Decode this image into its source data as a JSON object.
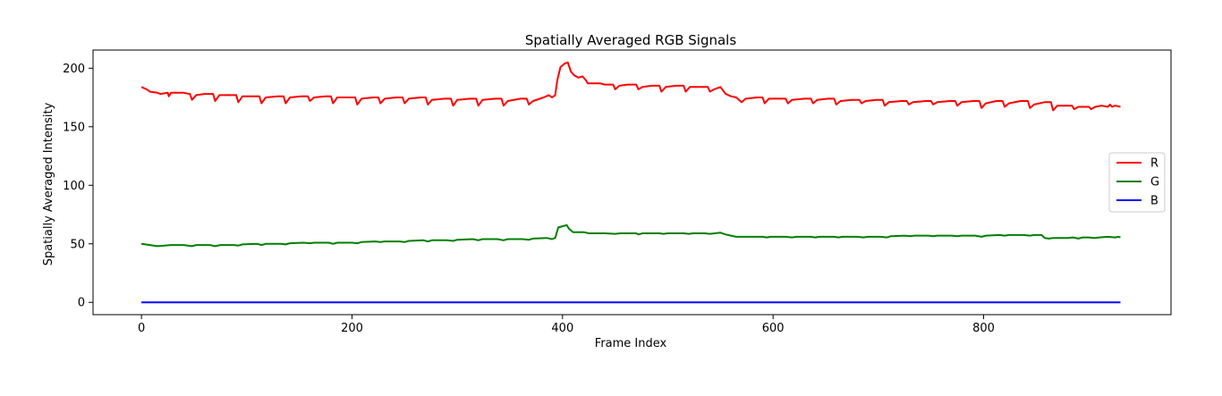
{
  "chart_data": {
    "type": "line",
    "title": "Spatially Averaged RGB Signals",
    "xlabel": "Frame Index",
    "ylabel": "Spatially Averaged Intensity",
    "xlim": [
      -46,
      978
    ],
    "ylim": [
      -10.5,
      215.5
    ],
    "xticks": [
      0,
      200,
      400,
      600,
      800
    ],
    "yticks": [
      0,
      50,
      100,
      150,
      200
    ],
    "grid": false,
    "legend_position": "center-right",
    "legend": [
      "R",
      "G",
      "B"
    ],
    "series": [
      {
        "name": "R",
        "color": "#ff0000",
        "points": [
          [
            0,
            184
          ],
          [
            5,
            182
          ],
          [
            8,
            180
          ],
          [
            15,
            179
          ],
          [
            18,
            178
          ],
          [
            25,
            179
          ],
          [
            26,
            176
          ],
          [
            28,
            179
          ],
          [
            40,
            179
          ],
          [
            46,
            178
          ],
          [
            48,
            173
          ],
          [
            52,
            177
          ],
          [
            60,
            178
          ],
          [
            68,
            178
          ],
          [
            70,
            172
          ],
          [
            74,
            177
          ],
          [
            85,
            177
          ],
          [
            90,
            177
          ],
          [
            92,
            171
          ],
          [
            96,
            176
          ],
          [
            108,
            176
          ],
          [
            112,
            176
          ],
          [
            114,
            170
          ],
          [
            118,
            175
          ],
          [
            130,
            176
          ],
          [
            135,
            176
          ],
          [
            137,
            170
          ],
          [
            141,
            175
          ],
          [
            152,
            176
          ],
          [
            158,
            176
          ],
          [
            160,
            172
          ],
          [
            164,
            175
          ],
          [
            175,
            176
          ],
          [
            180,
            176
          ],
          [
            182,
            170
          ],
          [
            186,
            175
          ],
          [
            198,
            175
          ],
          [
            203,
            175
          ],
          [
            205,
            169
          ],
          [
            209,
            174
          ],
          [
            220,
            175
          ],
          [
            225,
            175
          ],
          [
            227,
            170
          ],
          [
            231,
            174
          ],
          [
            242,
            175
          ],
          [
            248,
            175
          ],
          [
            250,
            170
          ],
          [
            254,
            174
          ],
          [
            265,
            175
          ],
          [
            270,
            175
          ],
          [
            272,
            169
          ],
          [
            276,
            173
          ],
          [
            288,
            174
          ],
          [
            294,
            174
          ],
          [
            296,
            168
          ],
          [
            300,
            173
          ],
          [
            312,
            174
          ],
          [
            318,
            174
          ],
          [
            320,
            168
          ],
          [
            324,
            173
          ],
          [
            336,
            174
          ],
          [
            342,
            174
          ],
          [
            344,
            168
          ],
          [
            348,
            172
          ],
          [
            360,
            174
          ],
          [
            366,
            174
          ],
          [
            368,
            169
          ],
          [
            372,
            172
          ],
          [
            382,
            175
          ],
          [
            387,
            177
          ],
          [
            390,
            175
          ],
          [
            393,
            177
          ],
          [
            395,
            190
          ],
          [
            398,
            201
          ],
          [
            402,
            204
          ],
          [
            405,
            205
          ],
          [
            408,
            197
          ],
          [
            411,
            194
          ],
          [
            415,
            192
          ],
          [
            419,
            193
          ],
          [
            422,
            190
          ],
          [
            424,
            187
          ],
          [
            430,
            187
          ],
          [
            436,
            187
          ],
          [
            440,
            186
          ],
          [
            448,
            186
          ],
          [
            450,
            182
          ],
          [
            454,
            185
          ],
          [
            462,
            186
          ],
          [
            470,
            186
          ],
          [
            472,
            182
          ],
          [
            476,
            184
          ],
          [
            485,
            185
          ],
          [
            492,
            185
          ],
          [
            494,
            180
          ],
          [
            498,
            184
          ],
          [
            508,
            185
          ],
          [
            515,
            185
          ],
          [
            517,
            180
          ],
          [
            521,
            184
          ],
          [
            530,
            184
          ],
          [
            538,
            184
          ],
          [
            540,
            180
          ],
          [
            544,
            182
          ],
          [
            550,
            184
          ],
          [
            555,
            178
          ],
          [
            560,
            176
          ],
          [
            565,
            175
          ],
          [
            570,
            171
          ],
          [
            574,
            174
          ],
          [
            585,
            175
          ],
          [
            590,
            175
          ],
          [
            592,
            170
          ],
          [
            596,
            174
          ],
          [
            608,
            174
          ],
          [
            612,
            174
          ],
          [
            614,
            170
          ],
          [
            618,
            173
          ],
          [
            630,
            174
          ],
          [
            636,
            174
          ],
          [
            638,
            170
          ],
          [
            642,
            173
          ],
          [
            652,
            174
          ],
          [
            658,
            174
          ],
          [
            660,
            169
          ],
          [
            664,
            172
          ],
          [
            675,
            173
          ],
          [
            682,
            173
          ],
          [
            684,
            170
          ],
          [
            688,
            172
          ],
          [
            698,
            173
          ],
          [
            704,
            173
          ],
          [
            706,
            168
          ],
          [
            710,
            171
          ],
          [
            722,
            172
          ],
          [
            727,
            172
          ],
          [
            729,
            169
          ],
          [
            733,
            171
          ],
          [
            745,
            172
          ],
          [
            750,
            172
          ],
          [
            752,
            169
          ],
          [
            756,
            171
          ],
          [
            768,
            172
          ],
          [
            773,
            172
          ],
          [
            775,
            168
          ],
          [
            779,
            171
          ],
          [
            790,
            172
          ],
          [
            796,
            172
          ],
          [
            798,
            166
          ],
          [
            802,
            170
          ],
          [
            812,
            172
          ],
          [
            818,
            172
          ],
          [
            820,
            167
          ],
          [
            824,
            170
          ],
          [
            835,
            172
          ],
          [
            842,
            172
          ],
          [
            844,
            166
          ],
          [
            848,
            169
          ],
          [
            858,
            171
          ],
          [
            864,
            171
          ],
          [
            866,
            164
          ],
          [
            870,
            168
          ],
          [
            880,
            168
          ],
          [
            884,
            168
          ],
          [
            886,
            165
          ],
          [
            890,
            167
          ],
          [
            896,
            167
          ],
          [
            900,
            167
          ],
          [
            902,
            165
          ],
          [
            906,
            167
          ],
          [
            912,
            168
          ],
          [
            918,
            167
          ],
          [
            920,
            169
          ],
          [
            922,
            167
          ],
          [
            925,
            168
          ],
          [
            930,
            167
          ]
        ]
      },
      {
        "name": "G",
        "color": "#008000",
        "points": [
          [
            0,
            50
          ],
          [
            8,
            49
          ],
          [
            15,
            48
          ],
          [
            22,
            48.5
          ],
          [
            28,
            49
          ],
          [
            40,
            49
          ],
          [
            48,
            48
          ],
          [
            52,
            49
          ],
          [
            65,
            49
          ],
          [
            70,
            48
          ],
          [
            75,
            49
          ],
          [
            88,
            49
          ],
          [
            92,
            48.5
          ],
          [
            96,
            49.5
          ],
          [
            110,
            50
          ],
          [
            114,
            49
          ],
          [
            118,
            50
          ],
          [
            132,
            50
          ],
          [
            137,
            49.5
          ],
          [
            141,
            50.5
          ],
          [
            154,
            51
          ],
          [
            160,
            50.5
          ],
          [
            164,
            51
          ],
          [
            178,
            51
          ],
          [
            182,
            50
          ],
          [
            186,
            51
          ],
          [
            200,
            51
          ],
          [
            205,
            50.5
          ],
          [
            209,
            51.5
          ],
          [
            222,
            52
          ],
          [
            227,
            51.5
          ],
          [
            231,
            52
          ],
          [
            245,
            52
          ],
          [
            250,
            51.5
          ],
          [
            254,
            52.5
          ],
          [
            268,
            53
          ],
          [
            272,
            52
          ],
          [
            276,
            53
          ],
          [
            290,
            53
          ],
          [
            296,
            52.5
          ],
          [
            300,
            53.5
          ],
          [
            315,
            54
          ],
          [
            320,
            53
          ],
          [
            324,
            54
          ],
          [
            338,
            54
          ],
          [
            344,
            53
          ],
          [
            348,
            54
          ],
          [
            362,
            54
          ],
          [
            368,
            53.5
          ],
          [
            372,
            54.5
          ],
          [
            385,
            55
          ],
          [
            390,
            54
          ],
          [
            393,
            55
          ],
          [
            396,
            64
          ],
          [
            400,
            65
          ],
          [
            404,
            66
          ],
          [
            406,
            63
          ],
          [
            410,
            60
          ],
          [
            415,
            60
          ],
          [
            420,
            60
          ],
          [
            425,
            59
          ],
          [
            440,
            59
          ],
          [
            450,
            58.5
          ],
          [
            455,
            59
          ],
          [
            470,
            59
          ],
          [
            472,
            58
          ],
          [
            476,
            59
          ],
          [
            492,
            59
          ],
          [
            496,
            58.5
          ],
          [
            500,
            59
          ],
          [
            515,
            59
          ],
          [
            520,
            58.5
          ],
          [
            524,
            59
          ],
          [
            535,
            59
          ],
          [
            540,
            58.5
          ],
          [
            545,
            59
          ],
          [
            550,
            59.5
          ],
          [
            555,
            58
          ],
          [
            560,
            57
          ],
          [
            565,
            56
          ],
          [
            570,
            56
          ],
          [
            578,
            56
          ],
          [
            590,
            56
          ],
          [
            594,
            55.5
          ],
          [
            598,
            56
          ],
          [
            612,
            56
          ],
          [
            618,
            55.5
          ],
          [
            622,
            56
          ],
          [
            636,
            56
          ],
          [
            640,
            55.5
          ],
          [
            644,
            56
          ],
          [
            658,
            56
          ],
          [
            662,
            55.5
          ],
          [
            666,
            56
          ],
          [
            680,
            56
          ],
          [
            686,
            55.5
          ],
          [
            690,
            56
          ],
          [
            702,
            56
          ],
          [
            708,
            55.5
          ],
          [
            712,
            56.5
          ],
          [
            725,
            57
          ],
          [
            730,
            56.5
          ],
          [
            734,
            57
          ],
          [
            748,
            57
          ],
          [
            752,
            56.5
          ],
          [
            756,
            57
          ],
          [
            770,
            57
          ],
          [
            775,
            56.5
          ],
          [
            779,
            57
          ],
          [
            792,
            57
          ],
          [
            798,
            56
          ],
          [
            802,
            57
          ],
          [
            815,
            57.5
          ],
          [
            820,
            57
          ],
          [
            824,
            57.5
          ],
          [
            838,
            57.5
          ],
          [
            844,
            57
          ],
          [
            848,
            57.5
          ],
          [
            855,
            57.5
          ],
          [
            858,
            55
          ],
          [
            862,
            54.5
          ],
          [
            866,
            55
          ],
          [
            875,
            55
          ],
          [
            880,
            55
          ],
          [
            885,
            55.5
          ],
          [
            890,
            54.5
          ],
          [
            894,
            55.5
          ],
          [
            900,
            55.5
          ],
          [
            905,
            55
          ],
          [
            910,
            55.5
          ],
          [
            918,
            56
          ],
          [
            925,
            55.5
          ],
          [
            928,
            56
          ],
          [
            930,
            55.5
          ]
        ]
      },
      {
        "name": "B",
        "color": "#0000ff",
        "points": [
          [
            0,
            0
          ],
          [
            930,
            0
          ]
        ]
      }
    ]
  }
}
